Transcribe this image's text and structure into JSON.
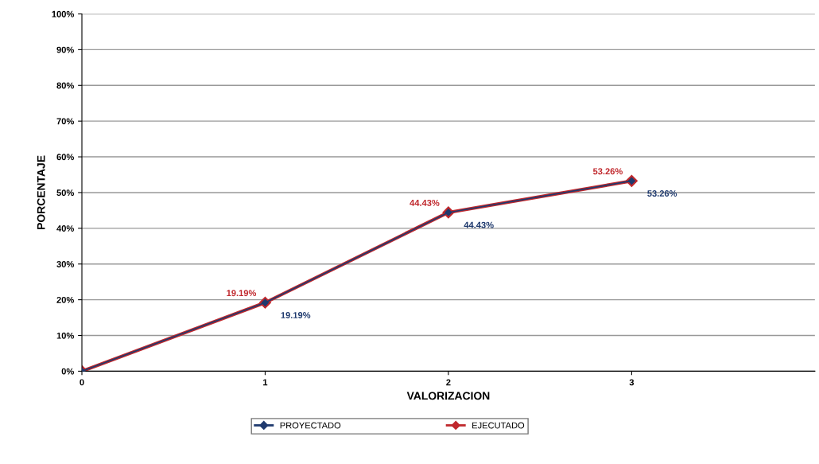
{
  "chart_data": {
    "type": "line",
    "xlabel": "VALORIZACION",
    "ylabel": "PORCENTAJE",
    "x": [
      0,
      1,
      2,
      3
    ],
    "xlim": [
      0,
      4
    ],
    "xticks": [
      0,
      1,
      2,
      3
    ],
    "ylim": [
      0,
      100
    ],
    "yticks": [
      {
        "value": 0,
        "label": "0%"
      },
      {
        "value": 10,
        "label": "10%"
      },
      {
        "value": 20,
        "label": "20%"
      },
      {
        "value": 30,
        "label": "30%"
      },
      {
        "value": 40,
        "label": "40%"
      },
      {
        "value": 50,
        "label": "50%"
      },
      {
        "value": 60,
        "label": "60%"
      },
      {
        "value": 70,
        "label": "70%"
      },
      {
        "value": 80,
        "label": "80%"
      },
      {
        "value": 90,
        "label": "90%"
      },
      {
        "value": 100,
        "label": "100%"
      }
    ],
    "grid": "y",
    "legend": "bottom",
    "marker": "diamond",
    "line_style": "solid",
    "series": [
      {
        "name": "PROYECTADO",
        "color": "#1f3a6e",
        "values": [
          0,
          19.19,
          44.43,
          53.26
        ],
        "value_labels": [
          null,
          "19.19%",
          "44.43%",
          "53.26%"
        ]
      },
      {
        "name": "EJECUTADO",
        "color": "#c0282d",
        "values": [
          0,
          19.19,
          44.43,
          53.26
        ],
        "value_labels": [
          null,
          "19.19%",
          "44.43%",
          "53.26%"
        ]
      }
    ]
  }
}
